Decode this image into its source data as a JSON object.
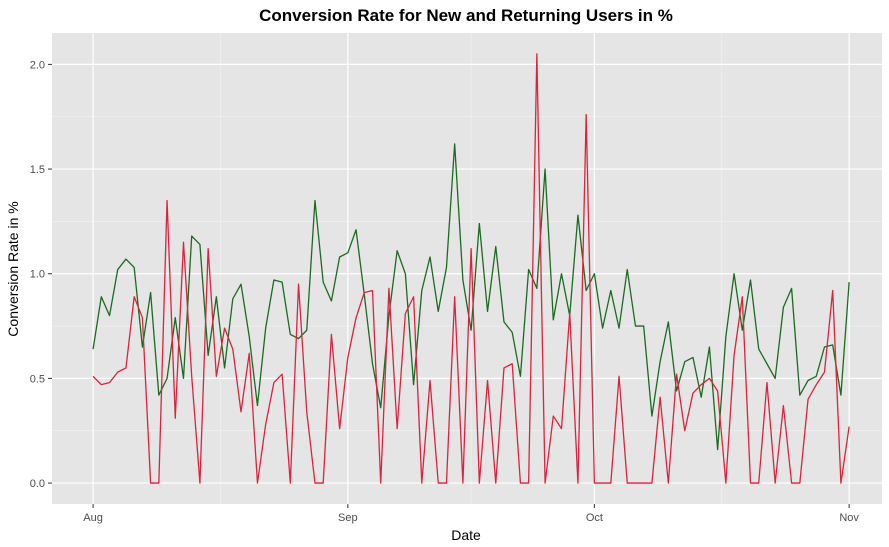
{
  "chart_data": {
    "type": "line",
    "title": "Conversion Rate for New and Returning Users in %",
    "xlabel": "Date",
    "ylabel": "Conversion Rate in %",
    "x_tick_labels": [
      "Aug",
      "Sep",
      "Oct",
      "Nov"
    ],
    "x_ticks": [
      "2017-08-01",
      "2017-09-01",
      "2017-10-01",
      "2017-11-01"
    ],
    "x_range": [
      "2017-07-27",
      "2017-11-05"
    ],
    "y_ticks": [
      0.0,
      0.5,
      1.0,
      1.5,
      2.0
    ],
    "y_tick_labels": [
      "0.0",
      "0.5",
      "1.0",
      "1.5",
      "2.0"
    ],
    "ylim": [
      -0.1,
      2.15
    ],
    "grid": true,
    "start_date": "2017-08-01",
    "series": [
      {
        "color": "#1a6b1f",
        "values": [
          0.64,
          0.89,
          0.8,
          1.02,
          1.07,
          1.03,
          0.65,
          0.91,
          0.42,
          0.5,
          0.79,
          0.5,
          1.18,
          1.14,
          0.61,
          0.89,
          0.55,
          0.88,
          0.95,
          0.7,
          0.37,
          0.74,
          0.97,
          0.96,
          0.71,
          0.69,
          0.73,
          1.35,
          0.96,
          0.87,
          1.08,
          1.1,
          1.21,
          0.9,
          0.57,
          0.36,
          0.8,
          1.11,
          1.0,
          0.47,
          0.92,
          1.08,
          0.82,
          1.03,
          1.62,
          0.97,
          0.73,
          1.24,
          0.82,
          1.13,
          0.77,
          0.72,
          0.51,
          1.02,
          0.93,
          1.5,
          0.78,
          1.0,
          0.8,
          1.28,
          0.92,
          1.0,
          0.74,
          0.92,
          0.74,
          1.02,
          0.75,
          0.75,
          0.32,
          0.58,
          0.77,
          0.44,
          0.58,
          0.6,
          0.41,
          0.65,
          0.16,
          0.7,
          1.0,
          0.73,
          0.97,
          0.64,
          0.57,
          0.5,
          0.84,
          0.93,
          0.42,
          0.49,
          0.51,
          0.65,
          0.66,
          0.42,
          0.96
        ]
      },
      {
        "color": "#d9233f",
        "values": [
          0.51,
          0.47,
          0.48,
          0.53,
          0.55,
          0.89,
          0.79,
          0.0,
          0.0,
          1.35,
          0.31,
          1.15,
          0.51,
          0.0,
          1.12,
          0.51,
          0.74,
          0.64,
          0.34,
          0.62,
          0.0,
          0.28,
          0.48,
          0.52,
          0.0,
          0.95,
          0.34,
          0.0,
          0.0,
          0.71,
          0.26,
          0.6,
          0.79,
          0.91,
          0.92,
          0.0,
          0.93,
          0.26,
          0.81,
          0.89,
          0.0,
          0.49,
          0.0,
          0.0,
          0.89,
          0.0,
          1.12,
          0.0,
          0.49,
          0.0,
          0.55,
          0.57,
          0.0,
          0.0,
          2.05,
          0.0,
          0.32,
          0.26,
          0.81,
          0.0,
          1.76,
          0.0,
          0.0,
          0.0,
          0.51,
          0.0,
          0.0,
          0.0,
          0.0,
          0.41,
          0.0,
          0.52,
          0.25,
          0.43,
          0.47,
          0.5,
          0.44,
          0.0,
          0.61,
          0.89,
          0.0,
          0.0,
          0.48,
          0.0,
          0.37,
          0.0,
          0.0,
          0.4,
          0.47,
          0.53,
          0.92,
          0.0,
          0.27
        ]
      }
    ]
  }
}
